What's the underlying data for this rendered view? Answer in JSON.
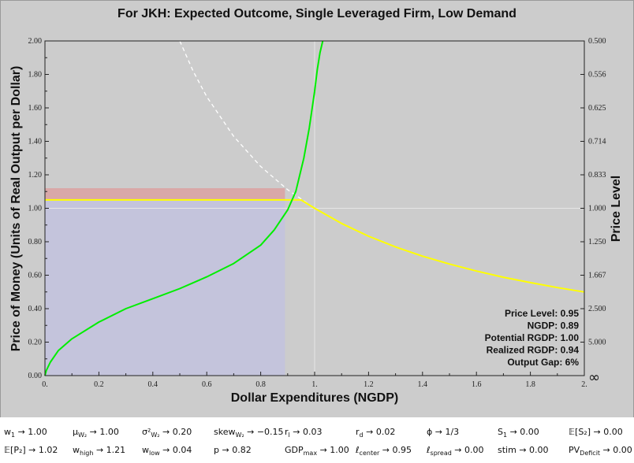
{
  "chart_data": {
    "type": "line",
    "title": "For JKH: Expected Outcome, Single Leveraged Firm, Low Demand",
    "xlabel": "Dollar Expenditures (NGDP)",
    "ylabel": "Price of Money (Units of Real Output per Dollar)",
    "y2label": "Price Level",
    "xlim": [
      0,
      2
    ],
    "ylim": [
      0,
      2
    ],
    "x_ticks": [
      "0.",
      "0.2",
      "0.4",
      "0.6",
      "0.8",
      "1.",
      "1.2",
      "1.4",
      "1.6",
      "1.8",
      "2."
    ],
    "y_ticks": [
      "0.00",
      "0.20",
      "0.40",
      "0.60",
      "0.80",
      "1.00",
      "1.20",
      "1.40",
      "1.60",
      "1.80",
      "2.00"
    ],
    "y2_ticks": [
      {
        "label": "∞",
        "price_of_money": 0.0
      },
      {
        "label": "5.000",
        "price_of_money": 0.2
      },
      {
        "label": "2.500",
        "price_of_money": 0.4
      },
      {
        "label": "1.667",
        "price_of_money": 0.6
      },
      {
        "label": "1.250",
        "price_of_money": 0.8
      },
      {
        "label": "1.000",
        "price_of_money": 1.0
      },
      {
        "label": "0.833",
        "price_of_money": 1.2
      },
      {
        "label": "0.714",
        "price_of_money": 1.4
      },
      {
        "label": "0.625",
        "price_of_money": 1.6
      },
      {
        "label": "0.556",
        "price_of_money": 1.8
      },
      {
        "label": "0.500",
        "price_of_money": 2.0
      }
    ],
    "grid": false,
    "series": [
      {
        "color": "#00ee00",
        "style": "solid",
        "x": [
          0.0,
          0.005,
          0.02,
          0.05,
          0.1,
          0.2,
          0.3,
          0.4,
          0.5,
          0.6,
          0.7,
          0.8,
          0.85,
          0.9,
          0.93,
          0.96,
          0.98,
          1.0,
          1.01,
          1.02,
          1.03
        ],
        "y": [
          0.0,
          0.03,
          0.08,
          0.15,
          0.22,
          0.32,
          0.4,
          0.46,
          0.52,
          0.59,
          0.67,
          0.78,
          0.87,
          0.99,
          1.1,
          1.3,
          1.48,
          1.7,
          1.83,
          1.93,
          2.0
        ]
      },
      {
        "color": "#ffff00",
        "style": "solid",
        "x": [
          0.0,
          0.95,
          1.0,
          1.1,
          1.2,
          1.3,
          1.4,
          1.5,
          1.6,
          1.7,
          1.8,
          1.9,
          2.0
        ],
        "y": [
          1.05,
          1.05,
          1.0,
          0.909,
          0.833,
          0.769,
          0.714,
          0.667,
          0.625,
          0.588,
          0.556,
          0.526,
          0.5
        ]
      },
      {
        "color": "#ffffff",
        "style": "dashed",
        "x": [
          0.5,
          0.55,
          0.6,
          0.7,
          0.8,
          0.9,
          1.0
        ],
        "y": [
          2.0,
          1.818,
          1.667,
          1.429,
          1.25,
          1.111,
          1.0
        ]
      }
    ],
    "shaded_regions": [
      {
        "color": "#c4c4dc",
        "x": [
          0,
          0.89
        ],
        "y": [
          0,
          1.05
        ]
      },
      {
        "color": "#d9a8a8",
        "x": [
          0,
          0.89
        ],
        "y": [
          1.05,
          1.12
        ]
      }
    ],
    "reference_lines": {
      "x": 1.0,
      "y": 1.0,
      "color": "#e6e6e6"
    }
  },
  "stats": [
    "Price Level: 0.95",
    "NGDP: 0.89",
    "Potential RGDP: 1.00",
    "Realized RGDP: 0.94",
    "Output Gap: 6%"
  ],
  "params": {
    "row1": [
      {
        "sym": "w",
        "sub": "1",
        "val": " → 1.00"
      },
      {
        "sym": "μ",
        "sub": "W₂",
        "val": " → 1.00"
      },
      {
        "sym": "σ²",
        "sub": "W₂",
        "val": " → 0.20"
      },
      {
        "sym": "skew",
        "sub": "W₂",
        "val": " → −0.15"
      },
      {
        "sym": "r",
        "sub": "l",
        "val": " → 0.03"
      },
      {
        "sym": "r",
        "sub": "d",
        "val": " → 0.02"
      },
      {
        "sym": "ϕ",
        "sub": "",
        "val": " → 1/3"
      },
      {
        "sym": "S",
        "sub": "1",
        "val": " → 0.00"
      },
      {
        "sym": "𝔼[S₂]",
        "sub": "",
        "val": " → 0.00"
      }
    ],
    "row2": [
      {
        "sym": "𝔼[P₂]",
        "sub": "",
        "val": " → 1.02"
      },
      {
        "sym": "w",
        "sub": "high",
        "val": " → 1.21"
      },
      {
        "sym": "w",
        "sub": "low",
        "val": " → 0.04"
      },
      {
        "sym": "p",
        "sub": "",
        "val": " → 0.82"
      },
      {
        "sym": "GDP",
        "sub": "max",
        "val": " → 1.00"
      },
      {
        "sym": "ℓ",
        "sub": "center",
        "val": " → 0.95"
      },
      {
        "sym": "ℓ",
        "sub": "spread",
        "val": " → 0.00"
      },
      {
        "sym": "stim",
        "sub": "",
        "val": " → 0.00"
      },
      {
        "sym": "PV",
        "sub": "Deficit",
        "val": " → 0.00"
      }
    ]
  }
}
